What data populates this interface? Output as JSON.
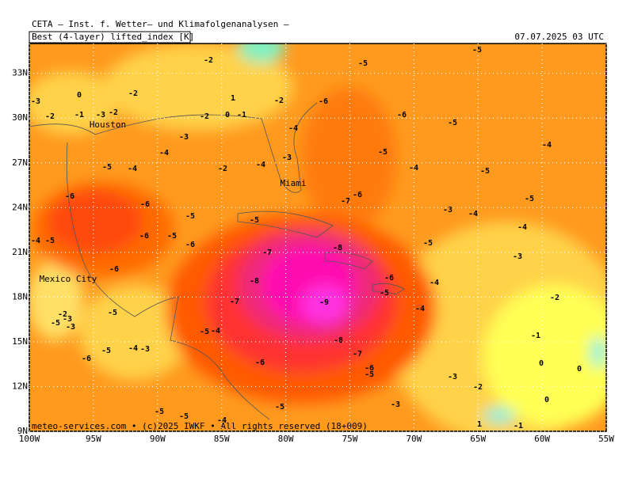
{
  "header": {
    "title": "CETA – Inst. f. Wetter– und Klimafolgenanalysen –",
    "field": "Best (4-layer) lifted_index [K]",
    "valid_time": "07.07.2025 03 UTC",
    "credit": "meteo-services.com • (c)2025 IWKF • All rights reserved (18+009)"
  },
  "map": {
    "lat_ticks": [
      {
        "value": 33,
        "label": "33N"
      },
      {
        "value": 30,
        "label": "30N"
      },
      {
        "value": 27,
        "label": "27N"
      },
      {
        "value": 24,
        "label": "24N"
      },
      {
        "value": 21,
        "label": "21N"
      },
      {
        "value": 18,
        "label": "18N"
      },
      {
        "value": 15,
        "label": "15N"
      },
      {
        "value": 12,
        "label": "12N"
      },
      {
        "value": 9,
        "label": "9N"
      }
    ],
    "lon_ticks": [
      {
        "value": -100,
        "label": "100W"
      },
      {
        "value": -95,
        "label": "95W"
      },
      {
        "value": -90,
        "label": "90W"
      },
      {
        "value": -85,
        "label": "85W"
      },
      {
        "value": -80,
        "label": "80W"
      },
      {
        "value": -75,
        "label": "75W"
      },
      {
        "value": -70,
        "label": "70W"
      },
      {
        "value": -65,
        "label": "65W"
      },
      {
        "value": -60,
        "label": "60W"
      },
      {
        "value": -55,
        "label": "55W"
      }
    ],
    "cities": [
      "Houston",
      "Mexico City",
      "Miami"
    ],
    "contour_labels": [
      -2,
      -5,
      -5,
      -3,
      0,
      -2,
      -2,
      -1,
      -3,
      -2,
      1,
      -2,
      -6,
      0,
      -1,
      -2,
      -6,
      -5,
      -4,
      -3,
      -4,
      -5,
      -4,
      -5,
      -4,
      -2,
      -4,
      -3,
      -4,
      -5,
      -6,
      -6,
      -7,
      -5,
      -6,
      -3,
      -4,
      -5,
      -5,
      -4,
      -4,
      -5,
      -6,
      -5,
      -6,
      -5,
      -7,
      -3,
      -8,
      -6,
      -6,
      -4,
      -8,
      -5,
      -7,
      -9,
      -2,
      -4,
      -5,
      -5,
      -3,
      -2,
      -3,
      -5,
      -4,
      -1,
      -8,
      -5,
      -4,
      -3,
      -7,
      -6,
      0,
      0,
      -6,
      -6,
      -5,
      -3,
      -2,
      0,
      -3,
      -5,
      -5,
      -5,
      -4,
      -1,
      1
    ]
  }
}
